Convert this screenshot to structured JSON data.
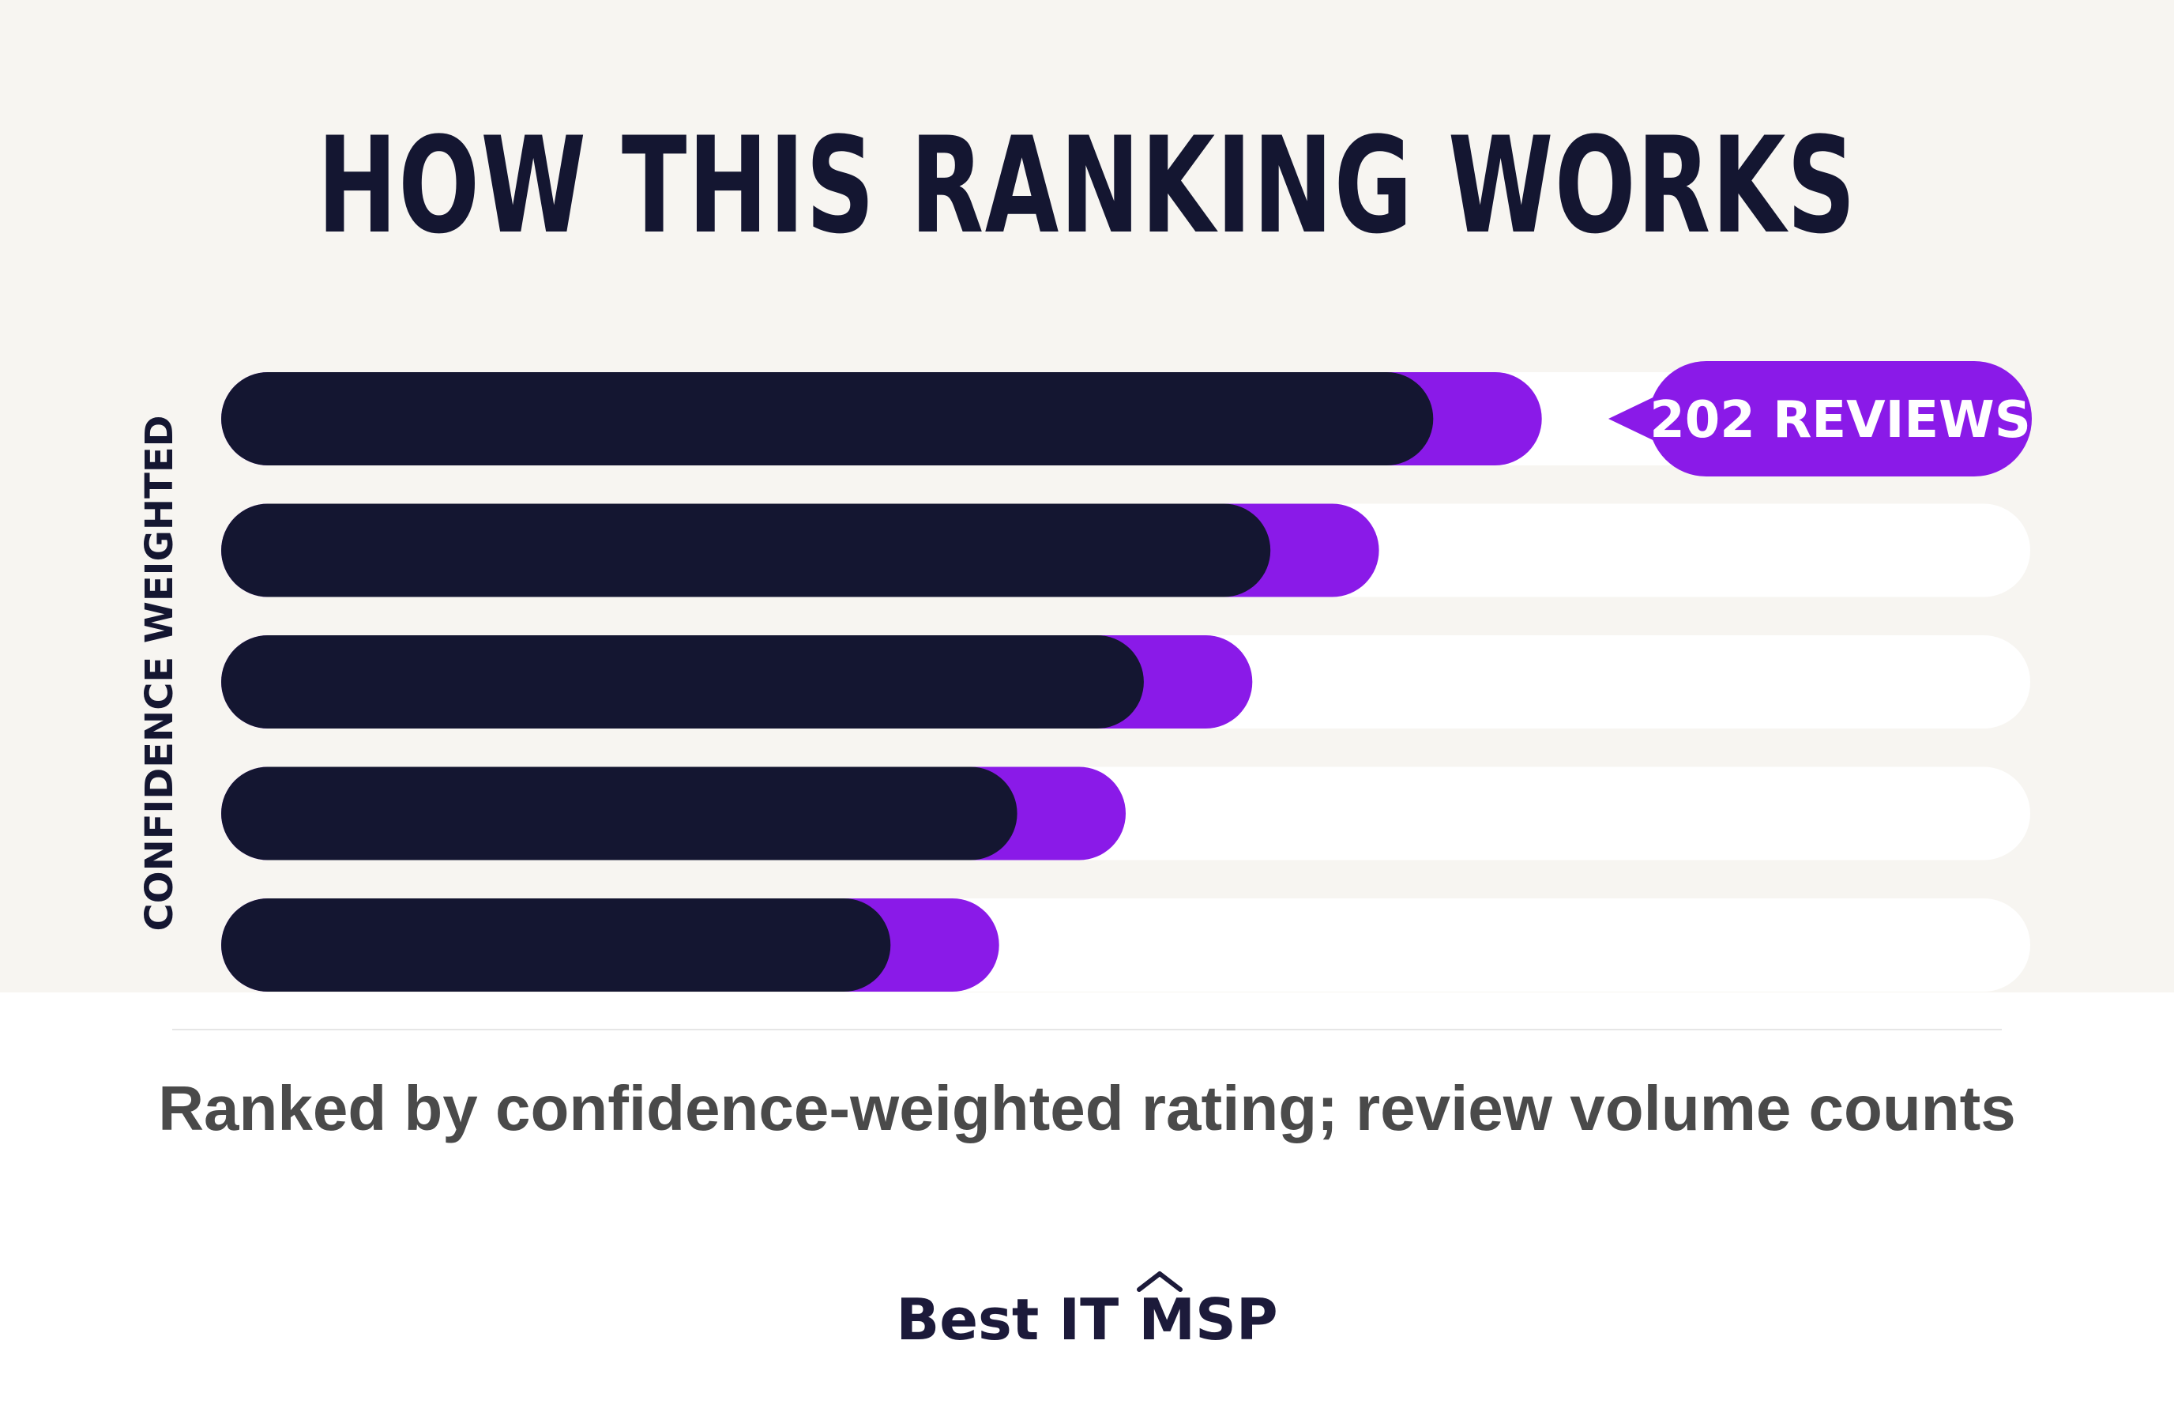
{
  "title": "HOW THIS RANKING WORKS",
  "colors": {
    "background_top": "#f7f5f1",
    "bar_dark": "#141631",
    "bar_accent": "#8a1ae8",
    "track": "#ffffff",
    "text_dark": "#141631",
    "caption_gray": "#4a4a4a"
  },
  "chart_data": {
    "type": "bar",
    "orientation": "horizontal",
    "ylabel": "CONFIDENCE WEIGHTED",
    "xlim": [
      0,
      1
    ],
    "grid": false,
    "annotation": "202 REVIEWS",
    "series": [
      {
        "values": [
          0.67,
          0.58,
          0.51,
          0.44,
          0.37
        ]
      },
      {
        "values": [
          0.06,
          0.06,
          0.06,
          0.06,
          0.06
        ]
      }
    ]
  },
  "caption": "Ranked by confidence-weighted rating; review volume counts",
  "brand": "Best IT MSP"
}
